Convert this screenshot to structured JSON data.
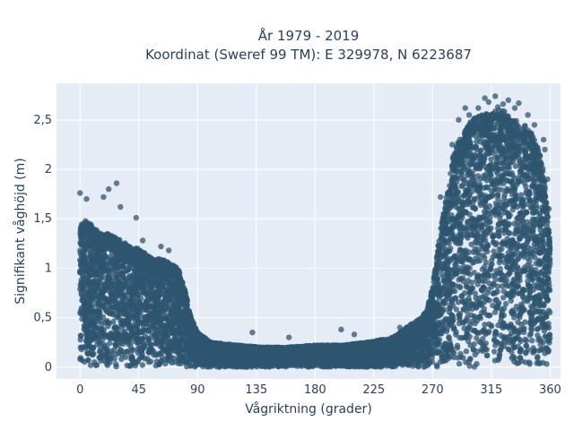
{
  "chart_data": {
    "type": "scatter",
    "title_line1": "År 1979 - 2019",
    "title_line2": "Koordinat (Sweref 99 TM): E 329978, N 6223687",
    "xlabel": "Vågriktning (grader)",
    "ylabel": "Signifikant våghöjd (m)",
    "xlim": [
      -18,
      368
    ],
    "ylim": [
      -0.12,
      2.87
    ],
    "x_ticks": [
      0,
      45,
      90,
      135,
      180,
      225,
      270,
      315,
      360
    ],
    "x_tick_labels": [
      "0",
      "45",
      "90",
      "135",
      "180",
      "225",
      "270",
      "315",
      "360"
    ],
    "y_ticks": [
      0,
      0.5,
      1,
      1.5,
      2,
      2.5
    ],
    "y_tick_labels": [
      "0",
      "0,5",
      "1",
      "1,5",
      "2",
      "2,5"
    ],
    "grid": true,
    "legend": "none",
    "colors": {
      "marker": "#2f5670",
      "plot_bg": "#e5ecf6",
      "grid": "#ffffff",
      "text": "#2a3f5f"
    },
    "envelope": {
      "x": [
        0,
        3,
        8,
        15,
        25,
        35,
        45,
        55,
        60,
        70,
        75,
        80,
        85,
        90,
        100,
        120,
        140,
        160,
        180,
        200,
        220,
        240,
        255,
        262,
        266,
        270,
        275,
        280,
        285,
        290,
        295,
        300,
        305,
        310,
        315,
        320,
        325,
        330,
        335,
        340,
        345,
        350,
        355,
        358,
        360
      ],
      "y": [
        1.4,
        1.5,
        1.45,
        1.35,
        1.35,
        1.25,
        1.2,
        1.1,
        1.1,
        1.05,
        1.0,
        0.8,
        0.5,
        0.35,
        0.25,
        0.22,
        0.2,
        0.2,
        0.22,
        0.22,
        0.25,
        0.3,
        0.45,
        0.5,
        0.6,
        0.8,
        1.3,
        1.7,
        2.1,
        2.3,
        2.4,
        2.5,
        2.55,
        2.55,
        2.6,
        2.6,
        2.6,
        2.5,
        2.5,
        2.45,
        2.4,
        2.25,
        2.0,
        1.6,
        1.2
      ]
    },
    "outliers": [
      {
        "x": 0,
        "y": 1.76
      },
      {
        "x": 5,
        "y": 1.7
      },
      {
        "x": 18,
        "y": 1.72
      },
      {
        "x": 22,
        "y": 1.8
      },
      {
        "x": 28,
        "y": 1.86
      },
      {
        "x": 31,
        "y": 1.62
      },
      {
        "x": 43,
        "y": 1.51
      },
      {
        "x": 48,
        "y": 1.28
      },
      {
        "x": 62,
        "y": 1.22
      },
      {
        "x": 68,
        "y": 1.18
      },
      {
        "x": 132,
        "y": 0.35
      },
      {
        "x": 160,
        "y": 0.3
      },
      {
        "x": 200,
        "y": 0.38
      },
      {
        "x": 210,
        "y": 0.33
      },
      {
        "x": 245,
        "y": 0.4
      },
      {
        "x": 276,
        "y": 1.72
      },
      {
        "x": 285,
        "y": 2.25
      },
      {
        "x": 290,
        "y": 2.5
      },
      {
        "x": 295,
        "y": 2.62
      },
      {
        "x": 298,
        "y": 2.55
      },
      {
        "x": 305,
        "y": 2.62
      },
      {
        "x": 310,
        "y": 2.72
      },
      {
        "x": 313,
        "y": 2.68
      },
      {
        "x": 318,
        "y": 2.74
      },
      {
        "x": 320,
        "y": 2.63
      },
      {
        "x": 324,
        "y": 2.66
      },
      {
        "x": 328,
        "y": 2.7
      },
      {
        "x": 333,
        "y": 2.62
      },
      {
        "x": 336,
        "y": 2.67
      },
      {
        "x": 343,
        "y": 2.55
      },
      {
        "x": 348,
        "y": 2.45
      },
      {
        "x": 355,
        "y": 2.3
      },
      {
        "x": 356,
        "y": 2.2
      },
      {
        "x": 358,
        "y": 1.9
      },
      {
        "x": 359,
        "y": 1.6
      }
    ]
  }
}
